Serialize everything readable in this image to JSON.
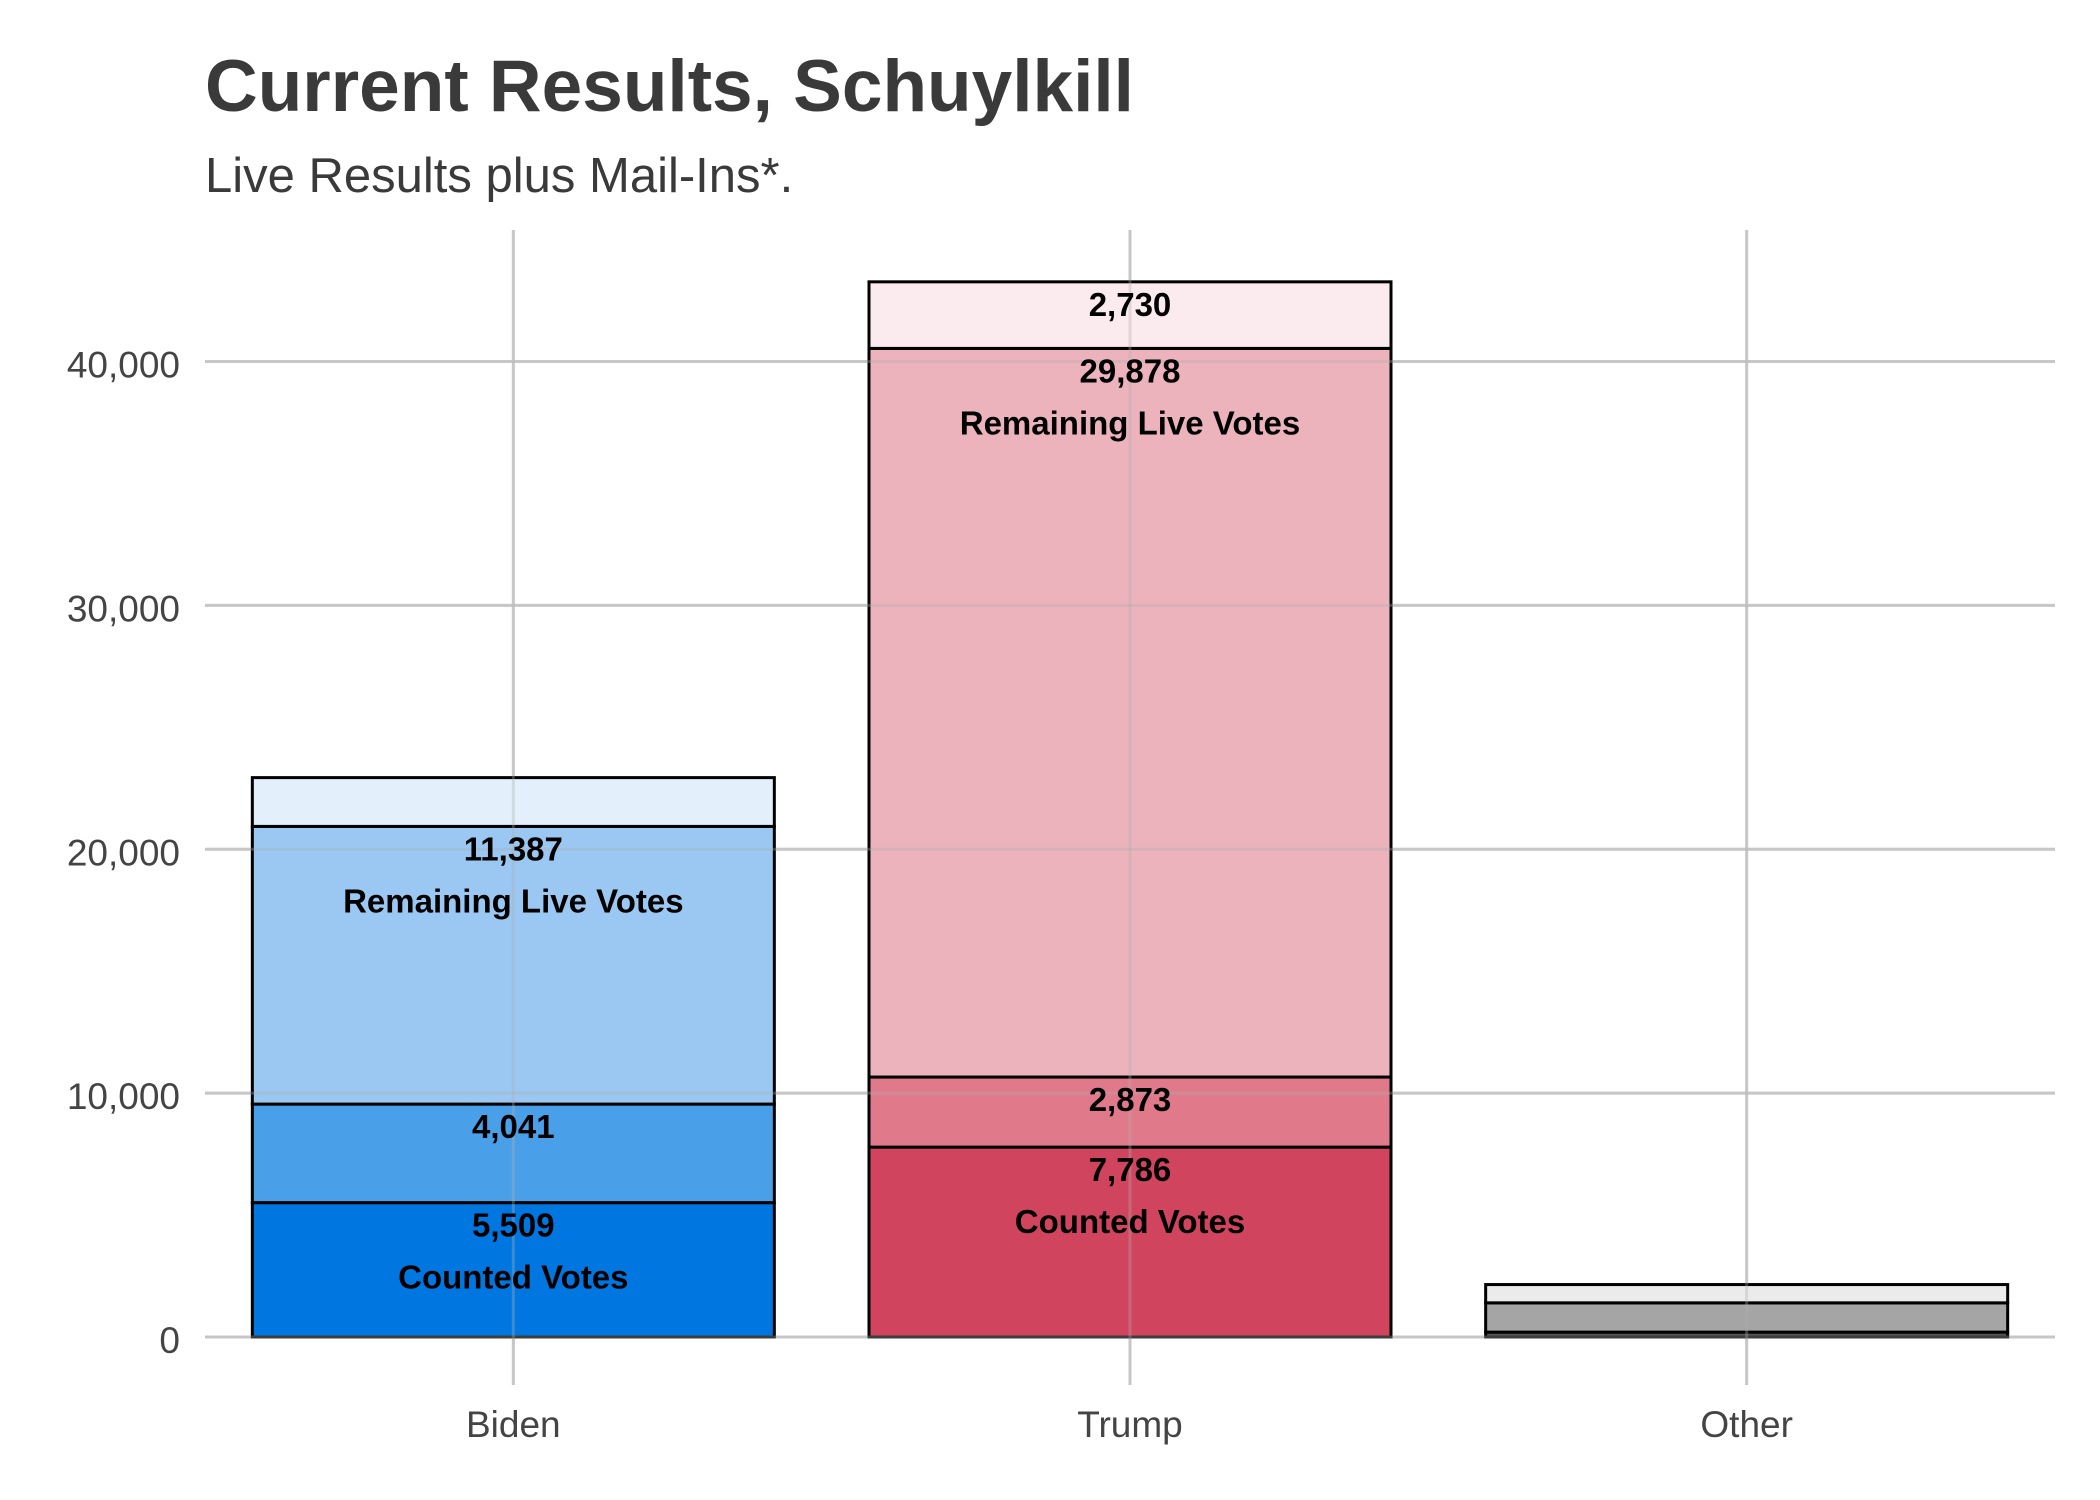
{
  "chart_data": {
    "type": "bar",
    "stacked": true,
    "title": "Current Results, Schuylkill",
    "subtitle": "Live Results plus Mail-Ins*.",
    "xlabel": "",
    "ylabel": "",
    "ylim": [
      0,
      45000
    ],
    "yticks": [
      0,
      10000,
      20000,
      30000,
      40000
    ],
    "ytick_labels": [
      "0",
      "10,000",
      "20,000",
      "30,000",
      "40,000"
    ],
    "grid": true,
    "legend": "none",
    "categories": [
      "Biden",
      "Trump",
      "Other"
    ],
    "bars": [
      {
        "category": "Biden",
        "segments": [
          {
            "value": 5509,
            "label": "5,509",
            "sublabel": "Counted Votes",
            "color": "#0077e0"
          },
          {
            "value": 4041,
            "label": "4,041",
            "sublabel": "",
            "color": "#4aa0e8"
          },
          {
            "value": 11387,
            "label": "11,387",
            "sublabel": "Remaining Live Votes",
            "color": "#9ac8f2"
          },
          {
            "value": 2000,
            "label": "",
            "sublabel": "",
            "color": "#e3f0fc"
          }
        ]
      },
      {
        "category": "Trump",
        "segments": [
          {
            "value": 7786,
            "label": "7,786",
            "sublabel": "Counted Votes",
            "color": "#d0445e"
          },
          {
            "value": 2873,
            "label": "2,873",
            "sublabel": "",
            "color": "#e07a8b"
          },
          {
            "value": 29878,
            "label": "29,878",
            "sublabel": "Remaining Live Votes",
            "color": "#ecb3bd"
          },
          {
            "value": 2730,
            "label": "2,730",
            "sublabel": "",
            "color": "#fbebee"
          }
        ]
      },
      {
        "category": "Other",
        "segments": [
          {
            "value": 200,
            "label": "",
            "sublabel": "",
            "color": "#555555"
          },
          {
            "value": 1200,
            "label": "",
            "sublabel": "",
            "color": "#a5a5a5"
          },
          {
            "value": 750,
            "label": "",
            "sublabel": "",
            "color": "#ebebeb"
          }
        ]
      }
    ]
  }
}
